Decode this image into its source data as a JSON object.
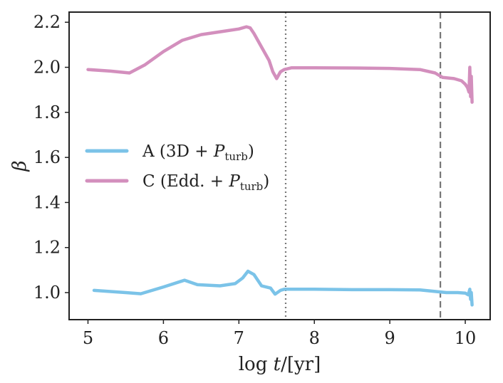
{
  "chart_data": {
    "type": "line",
    "xlabel": "log t/[yr]",
    "ylabel": "β",
    "xlim": [
      4.75,
      10.33
    ],
    "ylim": [
      0.88,
      2.245
    ],
    "xticks": [
      5,
      6,
      7,
      8,
      9,
      10
    ],
    "yticks": [
      1.0,
      1.2,
      1.4,
      1.6,
      1.8,
      2.0,
      2.2
    ],
    "xtick_labels": [
      "5",
      "6",
      "7",
      "8",
      "9",
      "10"
    ],
    "ytick_labels": [
      "1.0",
      "1.2",
      "1.4",
      "1.6",
      "1.8",
      "2.0",
      "2.2"
    ],
    "vlines": [
      {
        "x": 7.62,
        "style": "dotted",
        "color": "#777777"
      },
      {
        "x": 9.67,
        "style": "dashed",
        "color": "#777777"
      }
    ],
    "legend_position": "center-left",
    "series": [
      {
        "name": "A (3D + P_turb)",
        "label_main": "A (3D + ",
        "label_var": "P",
        "label_sub": "turb",
        "label_end": ")",
        "color": "#7bc3e8",
        "x": [
          5.08,
          5.5,
          5.7,
          6.0,
          6.28,
          6.45,
          6.75,
          6.95,
          7.05,
          7.12,
          7.2,
          7.3,
          7.42,
          7.48,
          7.55,
          7.6,
          7.7,
          8.0,
          8.5,
          9.0,
          9.4,
          9.6,
          9.75,
          9.9,
          10.0,
          10.04,
          10.06,
          10.07,
          10.08,
          10.09
        ],
        "y": [
          1.01,
          1.0,
          0.995,
          1.025,
          1.055,
          1.035,
          1.03,
          1.04,
          1.065,
          1.095,
          1.08,
          1.03,
          1.02,
          0.993,
          1.01,
          1.015,
          1.015,
          1.015,
          1.013,
          1.013,
          1.012,
          1.005,
          1.0,
          1.0,
          0.998,
          0.99,
          1.015,
          0.97,
          1.0,
          0.945
        ]
      },
      {
        "name": "C (Edd. + P_turb)",
        "label_main": "C (Edd. + ",
        "label_var": "P",
        "label_sub": "turb",
        "label_end": ")",
        "color": "#d38fbd",
        "x": [
          5.0,
          5.3,
          5.55,
          5.75,
          6.0,
          6.25,
          6.5,
          6.8,
          7.0,
          7.1,
          7.15,
          7.2,
          7.3,
          7.4,
          7.45,
          7.5,
          7.55,
          7.6,
          7.7,
          8.0,
          8.5,
          9.0,
          9.4,
          9.6,
          9.7,
          9.85,
          9.95,
          10.0,
          10.03,
          10.05,
          10.06,
          10.07,
          10.08,
          10.09
        ],
        "y": [
          1.99,
          1.983,
          1.975,
          2.01,
          2.07,
          2.12,
          2.145,
          2.16,
          2.17,
          2.18,
          2.175,
          2.15,
          2.09,
          2.03,
          1.98,
          1.95,
          1.98,
          1.99,
          1.998,
          1.998,
          1.997,
          1.995,
          1.99,
          1.975,
          1.955,
          1.95,
          1.94,
          1.925,
          1.91,
          1.89,
          2.0,
          1.87,
          1.96,
          1.845
        ]
      }
    ]
  }
}
